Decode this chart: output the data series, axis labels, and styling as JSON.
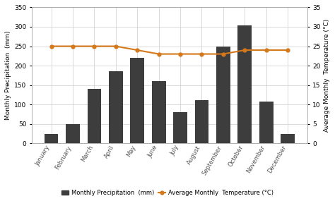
{
  "months": [
    "January",
    "February",
    "March",
    "April",
    "May",
    "June",
    "July",
    "August",
    "September",
    "October",
    "November",
    "December"
  ],
  "precipitation": [
    25,
    50,
    140,
    185,
    220,
    160,
    80,
    112,
    250,
    303,
    108,
    25
  ],
  "temperature": [
    25,
    25,
    25,
    25,
    24,
    23,
    23,
    23,
    23,
    24,
    24,
    24
  ],
  "bar_color": "#3d3d3d",
  "line_color": "#D4781A",
  "marker_color": "#D4781A",
  "background_color": "#ffffff",
  "grid_color": "#cccccc",
  "precip_ylabel": "Monthly Precipitation  (mm)",
  "temp_ylabel": "Average Monthly  Temperature (°C)",
  "precip_ylim": [
    0,
    350
  ],
  "temp_ylim": [
    0,
    35
  ],
  "precip_yticks": [
    0,
    50,
    100,
    150,
    200,
    250,
    300,
    350
  ],
  "temp_yticks": [
    0,
    5,
    10,
    15,
    20,
    25,
    30,
    35
  ],
  "legend_precip": "Monthly Precipitation  (mm)",
  "legend_temp": "Average Monthly  Temperature (°C)"
}
